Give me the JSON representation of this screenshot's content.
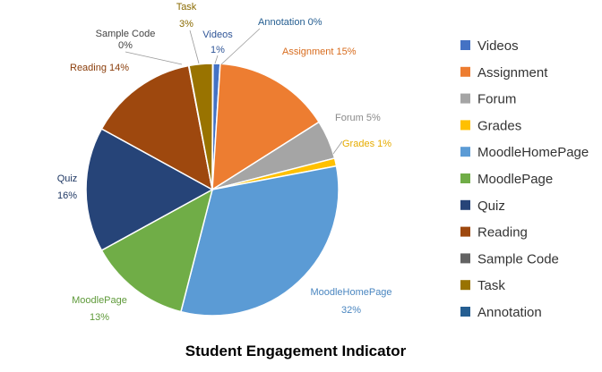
{
  "chart_data": {
    "type": "pie",
    "title": "Student Engagement Indicator",
    "legend_position": "right",
    "slices": [
      {
        "name": "Videos",
        "value": 1,
        "label": "Videos",
        "pct_label": "1%",
        "color": "#4472c4",
        "label_color": "#2f5597"
      },
      {
        "name": "Assignment",
        "value": 15,
        "label": "Assignment 15%",
        "pct_label": "",
        "color": "#ed7d31",
        "label_color": "#d86c1e"
      },
      {
        "name": "Forum",
        "value": 5,
        "label": "Forum 5%",
        "pct_label": "",
        "color": "#a5a5a5",
        "label_color": "#8a8a8a"
      },
      {
        "name": "Grades",
        "value": 1,
        "label": "Grades 1%",
        "pct_label": "",
        "color": "#ffc000",
        "label_color": "#e6ac00"
      },
      {
        "name": "MoodleHomePage",
        "value": 32,
        "label": "MoodleHomePage",
        "pct_label": "32%",
        "color": "#5b9bd5",
        "label_color": "#4a86c0"
      },
      {
        "name": "MoodlePage",
        "value": 13,
        "label": "MoodlePage",
        "pct_label": "13%",
        "color": "#70ad47",
        "label_color": "#5f9a3a"
      },
      {
        "name": "Quiz",
        "value": 16,
        "label": "Quiz",
        "pct_label": "16%",
        "color": "#264478",
        "label_color": "#1f3864"
      },
      {
        "name": "Reading",
        "value": 14,
        "label": "Reading 14%",
        "pct_label": "",
        "color": "#9e480e",
        "label_color": "#8a3d0a"
      },
      {
        "name": "Sample Code",
        "value": 0,
        "label": "Sample Code",
        "pct_label": "0%",
        "color": "#636363",
        "label_color": "#444444"
      },
      {
        "name": "Task",
        "value": 3,
        "label": "Task",
        "pct_label": "3%",
        "color": "#997300",
        "label_color": "#8a6a00"
      },
      {
        "name": "Annotation",
        "value": 0,
        "label": "Annotation 0%",
        "pct_label": "",
        "color": "#255e91",
        "label_color": "#255e91"
      }
    ]
  }
}
